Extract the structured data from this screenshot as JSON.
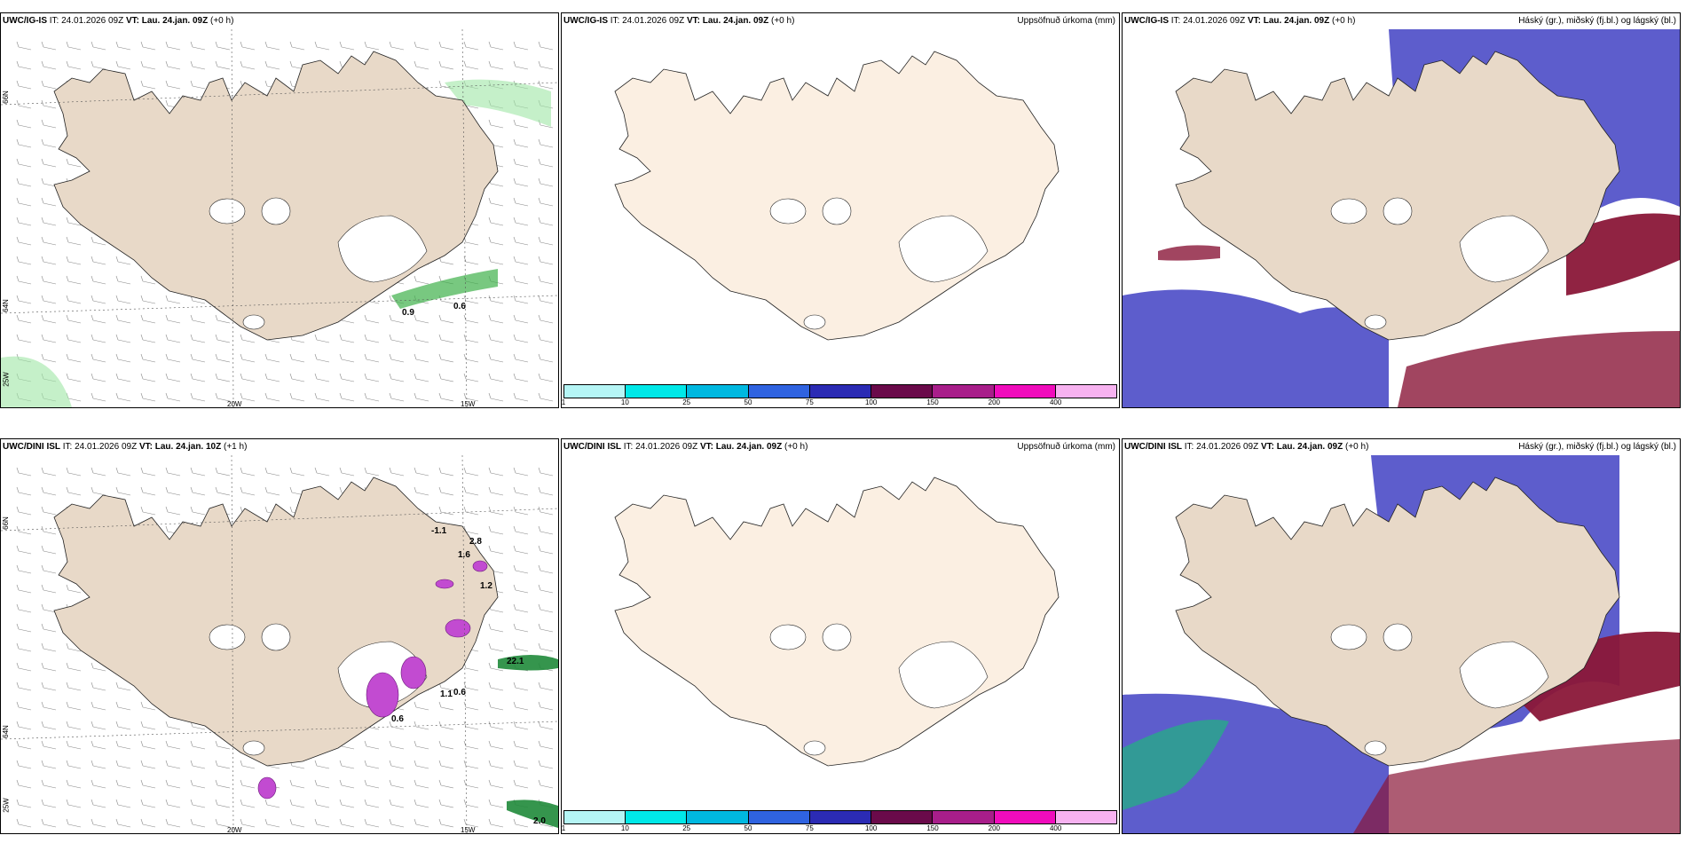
{
  "rows": [
    {
      "model": "UWC/IG-IS",
      "panels": [
        {
          "model": "UWC/IG-IS",
          "it_label": "IT:",
          "it_value": "24.01.2026 09Z",
          "vt_label": "VT:",
          "vt_value": "Lau. 24.jan. 09Z",
          "lead": "(+0 h)",
          "right_title": "",
          "labels": [
            {
              "text": "0.9"
            },
            {
              "text": "0.6"
            }
          ]
        },
        {
          "model": "UWC/IG-IS",
          "it_label": "IT:",
          "it_value": "24.01.2026 09Z",
          "vt_label": "VT:",
          "vt_value": "Lau. 24.jan. 09Z",
          "lead": "(+0 h)",
          "right_title": "Uppsöfnuð úrkoma (mm)"
        },
        {
          "model": "UWC/IG-IS",
          "it_label": "IT:",
          "it_value": "24.01.2026 09Z",
          "vt_label": "VT:",
          "vt_value": "Lau. 24.jan. 09Z",
          "lead": "(+0 h)",
          "right_title": "Háský (gr.), miðský (fj.bl.) og lágský (bl.)"
        }
      ]
    },
    {
      "model": "UWC/DINI ISL",
      "panels": [
        {
          "model": "UWC/DINI ISL",
          "it_label": "IT:",
          "it_value": "24.01.2026 09Z",
          "vt_label": "VT:",
          "vt_value": "Lau. 24.jan. 10Z",
          "lead": "(+1 h)",
          "right_title": "",
          "labels": [
            {
              "text": "-1.1"
            },
            {
              "text": "2.8"
            },
            {
              "text": "1.6"
            },
            {
              "text": "1.2"
            },
            {
              "text": "22.1"
            },
            {
              "text": "1.1"
            },
            {
              "text": "0.6"
            },
            {
              "text": "0.6"
            },
            {
              "text": "2.0"
            }
          ]
        },
        {
          "model": "UWC/DINI ISL",
          "it_label": "IT:",
          "it_value": "24.01.2026 09Z",
          "vt_label": "VT:",
          "vt_value": "Lau. 24.jan. 09Z",
          "lead": "(+0 h)",
          "right_title": "Uppsöfnuð úrkoma (mm)"
        },
        {
          "model": "UWC/DINI ISL",
          "it_label": "IT:",
          "it_value": "24.01.2026 09Z",
          "vt_label": "VT:",
          "vt_value": "Lau. 24.jan. 09Z",
          "lead": "(+0 h)",
          "right_title": "Háský (gr.), miðský (fj.bl.) og lágský (bl.)"
        }
      ]
    }
  ],
  "axis_labels": {
    "lat_66": "66N",
    "lat_64": "64N",
    "lon_20w": "20W",
    "lon_15w": "15W",
    "lon_25w": "25W"
  },
  "colorbar": {
    "ticks": [
      "1",
      "10",
      "25",
      "50",
      "75",
      "100",
      "150",
      "200",
      "400"
    ],
    "colors": [
      "#b5f5f5",
      "#00e8e8",
      "#00b8e0",
      "#2f63e0",
      "#2b2bb4",
      "#6a0a4a",
      "#a81e8a",
      "#f00cbc",
      "#f7b2f0"
    ]
  },
  "colors": {
    "land": "#e8d9c8",
    "land_precip": "#fbefe2",
    "sea": "#ffffff",
    "green": "#9fe6a5",
    "blue_cloud": "#4b4bc7",
    "red_cloud": "#8a1738"
  }
}
